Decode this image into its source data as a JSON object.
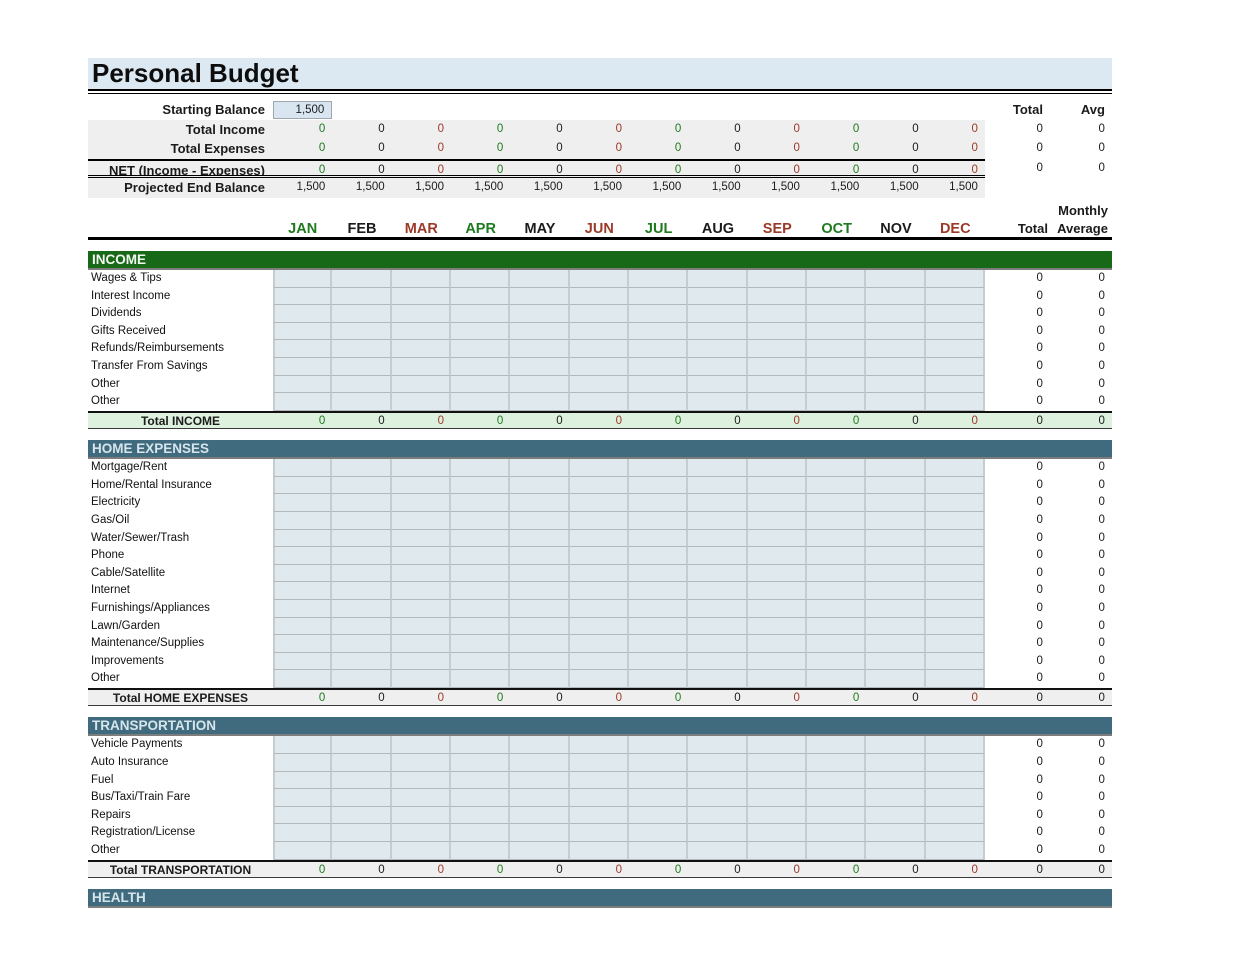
{
  "title": "Personal Budget",
  "colors": {
    "title_bg": "#dde9f2",
    "income_header_bg": "#176817",
    "income_header_text": "#f2f7f2",
    "expense_header_bg": "#406b7e",
    "expense_header_text": "#d6e5ec",
    "summary_band_bg": "#efefef",
    "income_total_bg": "#def1de",
    "expense_total_bg": "#efefef",
    "cell_bg": "#dfe9ee",
    "value_green": "#1e7a1e",
    "value_black": "#1b1b1b",
    "value_red": "#9c3928"
  },
  "tones": {
    "g": "#1e7a1e",
    "k": "#1b1b1b",
    "r": "#9c3928"
  },
  "columns": {
    "total_header": "Total",
    "avg_header": "Avg",
    "monthly_label": "Monthly",
    "monthly_total_label": "Total",
    "monthly_average_label": "Average"
  },
  "months": [
    {
      "label": "JAN",
      "tone": "g"
    },
    {
      "label": "FEB",
      "tone": "k"
    },
    {
      "label": "MAR",
      "tone": "r"
    },
    {
      "label": "APR",
      "tone": "g"
    },
    {
      "label": "MAY",
      "tone": "k"
    },
    {
      "label": "JUN",
      "tone": "r"
    },
    {
      "label": "JUL",
      "tone": "g"
    },
    {
      "label": "AUG",
      "tone": "k"
    },
    {
      "label": "SEP",
      "tone": "r"
    },
    {
      "label": "OCT",
      "tone": "g"
    },
    {
      "label": "NOV",
      "tone": "k"
    },
    {
      "label": "DEC",
      "tone": "r"
    }
  ],
  "summary": {
    "starting_balance": {
      "label": "Starting Balance",
      "value": "1,500"
    },
    "rows": [
      {
        "label": "Total Income",
        "style": "plain",
        "use_tones": true,
        "values": [
          "0",
          "0",
          "0",
          "0",
          "0",
          "0",
          "0",
          "0",
          "0",
          "0",
          "0",
          "0"
        ],
        "total": "0",
        "avg": "0"
      },
      {
        "label": "Total Expenses",
        "style": "plain",
        "use_tones": true,
        "values": [
          "0",
          "0",
          "0",
          "0",
          "0",
          "0",
          "0",
          "0",
          "0",
          "0",
          "0",
          "0"
        ],
        "total": "0",
        "avg": "0"
      },
      {
        "label": "NET (Income - Expenses)",
        "style": "net",
        "use_tones": true,
        "values": [
          "0",
          "0",
          "0",
          "0",
          "0",
          "0",
          "0",
          "0",
          "0",
          "0",
          "0",
          "0"
        ],
        "total": "0",
        "avg": "0"
      },
      {
        "label": "Projected End Balance",
        "style": "projected",
        "use_tones": false,
        "values": [
          "1,500",
          "1,500",
          "1,500",
          "1,500",
          "1,500",
          "1,500",
          "1,500",
          "1,500",
          "1,500",
          "1,500",
          "1,500",
          "1,500"
        ],
        "total": "",
        "avg": ""
      }
    ]
  },
  "sections": [
    {
      "name": "INCOME",
      "header_style": "income",
      "items": [
        {
          "label": "Wages & Tips",
          "total": "0",
          "avg": "0"
        },
        {
          "label": "Interest Income",
          "total": "0",
          "avg": "0"
        },
        {
          "label": "Dividends",
          "total": "0",
          "avg": "0"
        },
        {
          "label": "Gifts Received",
          "total": "0",
          "avg": "0"
        },
        {
          "label": "Refunds/Reimbursements",
          "total": "0",
          "avg": "0"
        },
        {
          "label": "Transfer From Savings",
          "total": "0",
          "avg": "0"
        },
        {
          "label": "Other",
          "total": "0",
          "avg": "0"
        },
        {
          "label": "Other",
          "total": "0",
          "avg": "0"
        }
      ],
      "total_row": {
        "label": "Total INCOME",
        "values": [
          "0",
          "0",
          "0",
          "0",
          "0",
          "0",
          "0",
          "0",
          "0",
          "0",
          "0",
          "0"
        ],
        "total": "0",
        "avg": "0"
      }
    },
    {
      "name": "HOME EXPENSES",
      "header_style": "expense",
      "items": [
        {
          "label": "Mortgage/Rent",
          "total": "0",
          "avg": "0"
        },
        {
          "label": "Home/Rental Insurance",
          "total": "0",
          "avg": "0"
        },
        {
          "label": "Electricity",
          "total": "0",
          "avg": "0"
        },
        {
          "label": "Gas/Oil",
          "total": "0",
          "avg": "0"
        },
        {
          "label": "Water/Sewer/Trash",
          "total": "0",
          "avg": "0"
        },
        {
          "label": "Phone",
          "total": "0",
          "avg": "0"
        },
        {
          "label": "Cable/Satellite",
          "total": "0",
          "avg": "0"
        },
        {
          "label": "Internet",
          "total": "0",
          "avg": "0"
        },
        {
          "label": "Furnishings/Appliances",
          "total": "0",
          "avg": "0"
        },
        {
          "label": "Lawn/Garden",
          "total": "0",
          "avg": "0"
        },
        {
          "label": "Maintenance/Supplies",
          "total": "0",
          "avg": "0"
        },
        {
          "label": "Improvements",
          "total": "0",
          "avg": "0"
        },
        {
          "label": "Other",
          "total": "0",
          "avg": "0"
        }
      ],
      "total_row": {
        "label": "Total HOME EXPENSES",
        "values": [
          "0",
          "0",
          "0",
          "0",
          "0",
          "0",
          "0",
          "0",
          "0",
          "0",
          "0",
          "0"
        ],
        "total": "0",
        "avg": "0"
      }
    },
    {
      "name": "TRANSPORTATION",
      "header_style": "expense",
      "items": [
        {
          "label": "Vehicle Payments",
          "total": "0",
          "avg": "0"
        },
        {
          "label": "Auto Insurance",
          "total": "0",
          "avg": "0"
        },
        {
          "label": "Fuel",
          "total": "0",
          "avg": "0"
        },
        {
          "label": "Bus/Taxi/Train Fare",
          "total": "0",
          "avg": "0"
        },
        {
          "label": "Repairs",
          "total": "0",
          "avg": "0"
        },
        {
          "label": "Registration/License",
          "total": "0",
          "avg": "0"
        },
        {
          "label": "Other",
          "total": "0",
          "avg": "0"
        }
      ],
      "total_row": {
        "label": "Total TRANSPORTATION",
        "values": [
          "0",
          "0",
          "0",
          "0",
          "0",
          "0",
          "0",
          "0",
          "0",
          "0",
          "0",
          "0"
        ],
        "total": "0",
        "avg": "0"
      }
    },
    {
      "name": "HEALTH",
      "header_style": "expense",
      "items": [],
      "total_row": null
    }
  ]
}
